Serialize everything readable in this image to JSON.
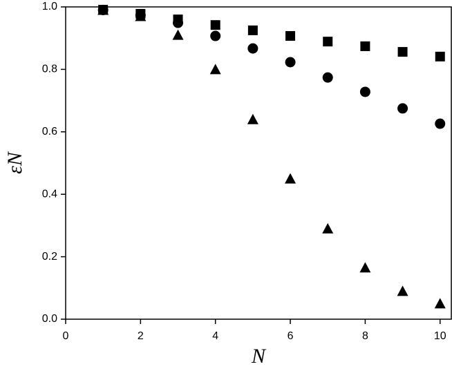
{
  "chart_data": {
    "type": "scatter",
    "xlabel": "N",
    "ylabel": "εN",
    "xlim": [
      0,
      10.3
    ],
    "ylim": [
      0,
      1
    ],
    "xticks": [
      0,
      2,
      4,
      6,
      8,
      10
    ],
    "yticks": [
      {
        "value": 0,
        "label": "0.0"
      },
      0.2,
      0.4,
      0.6,
      0.8,
      {
        "value": 1,
        "label": "1.0"
      }
    ],
    "series": [
      {
        "marker": "square",
        "color": "#000000",
        "x": [
          1,
          2,
          3,
          4,
          5,
          6,
          7,
          8,
          9,
          10
        ],
        "values": [
          0.991,
          0.978,
          0.96,
          0.942,
          0.925,
          0.907,
          0.889,
          0.874,
          0.856,
          0.841
        ]
      },
      {
        "marker": "circle",
        "color": "#000000",
        "x": [
          1,
          2,
          3,
          4,
          5,
          6,
          7,
          8,
          9,
          10
        ],
        "values": [
          0.99,
          0.973,
          0.949,
          0.907,
          0.867,
          0.823,
          0.774,
          0.728,
          0.675,
          0.626
        ]
      },
      {
        "marker": "triangle",
        "color": "#000000",
        "x": [
          1,
          2,
          3,
          4,
          5,
          6,
          7,
          8,
          9,
          10
        ],
        "values": [
          0.99,
          0.97,
          0.91,
          0.8,
          0.64,
          0.45,
          0.29,
          0.165,
          0.09,
          0.05
        ]
      }
    ]
  }
}
